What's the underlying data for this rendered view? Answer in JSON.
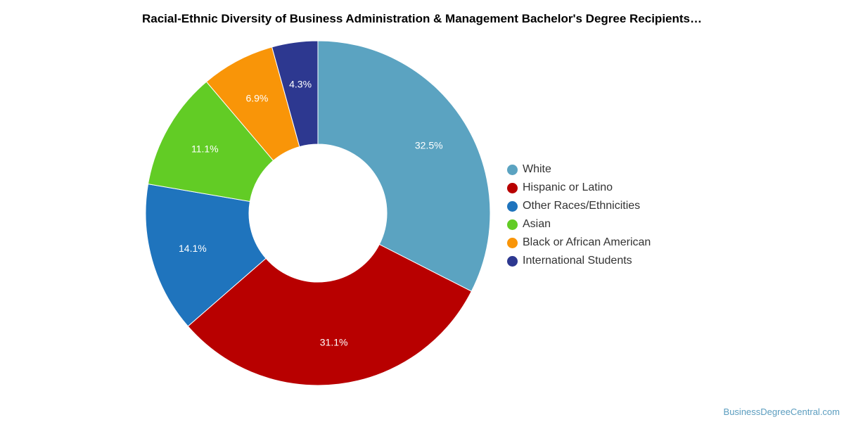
{
  "page": {
    "title": "Racial-Ethnic Diversity of Business Administration & Management Bachelor's Degree Recipients…",
    "source": "BusinessDegreeCentral.com"
  },
  "chart_data": {
    "type": "pie",
    "variant": "donut",
    "title": "Racial-Ethnic Diversity of Business Administration & Management Bachelor's Degree Recipients…",
    "legend_position": "right",
    "unit": "%",
    "slices": [
      {
        "name": "White",
        "value": 32.5,
        "label": "32.5%",
        "color": "#5ba3c1"
      },
      {
        "name": "Hispanic or Latino",
        "value": 31.1,
        "label": "31.1%",
        "color": "#b80000"
      },
      {
        "name": "Other Races/Ethnicities",
        "value": 14.1,
        "label": "14.1%",
        "color": "#1f74bd"
      },
      {
        "name": "Asian",
        "value": 11.1,
        "label": "11.1%",
        "color": "#62cc25"
      },
      {
        "name": "Black or African American",
        "value": 6.9,
        "label": "6.9%",
        "color": "#f99508"
      },
      {
        "name": "International Students",
        "value": 4.3,
        "label": "4.3%",
        "color": "#2d3890"
      }
    ]
  }
}
